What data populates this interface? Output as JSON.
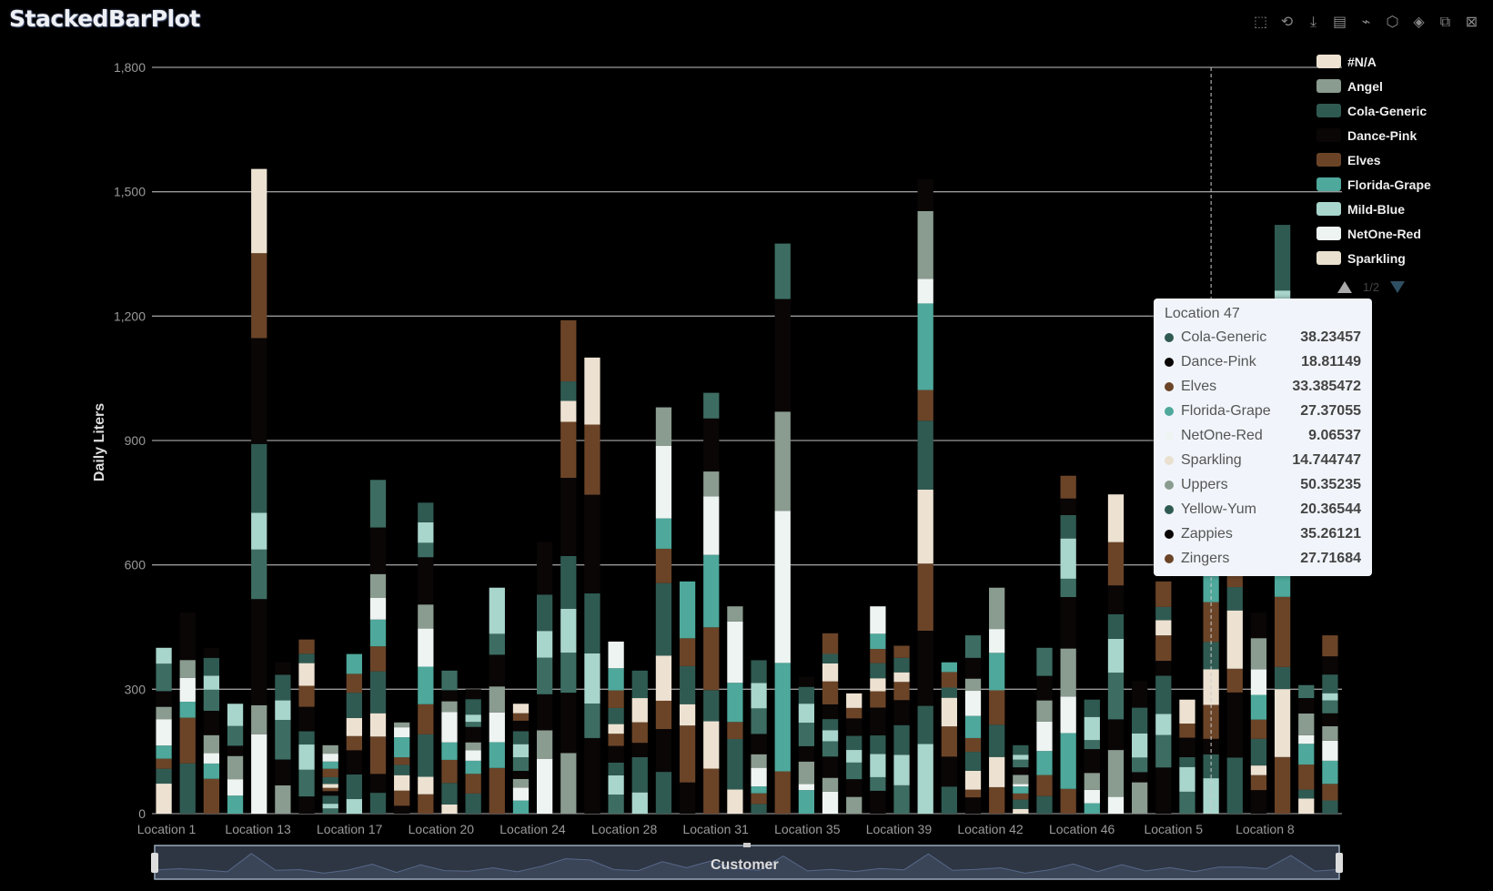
{
  "title": "StackedBarPlot",
  "toolbox": [
    {
      "name": "zoom-select-icon",
      "glyph": "⬚"
    },
    {
      "name": "zoom-reset-icon",
      "glyph": "⟲"
    },
    {
      "name": "download-icon",
      "glyph": "⤓"
    },
    {
      "name": "data-view-icon",
      "glyph": "▤"
    },
    {
      "name": "lasso-icon",
      "glyph": "⌁"
    },
    {
      "name": "polygon-select-icon",
      "glyph": "⬡"
    },
    {
      "name": "rect-select-icon",
      "glyph": "◈"
    },
    {
      "name": "keep-selection-icon",
      "glyph": "⧉"
    },
    {
      "name": "clear-selection-icon",
      "glyph": "⊠"
    }
  ],
  "legend": {
    "items": [
      {
        "label": "#N/A",
        "color": "#ede2d2"
      },
      {
        "label": "Angel",
        "color": "#8a9b8f"
      },
      {
        "label": "Cola-Generic",
        "color": "#2f5a52"
      },
      {
        "label": "Dance-Pink",
        "color": "#0a0606"
      },
      {
        "label": "Elves",
        "color": "#6b4428"
      },
      {
        "label": "Florida-Grape",
        "color": "#4ea89b"
      },
      {
        "label": "Mild-Blue",
        "color": "#a8d5cc"
      },
      {
        "label": "NetOne-Red",
        "color": "#eef4f2"
      },
      {
        "label": "Sparkling",
        "color": "#eae0d0"
      }
    ],
    "page": "1/2"
  },
  "tooltip": {
    "title": "Location 47",
    "rows": [
      {
        "name": "Cola-Generic",
        "value": "38.23457",
        "color": "#2f5a52"
      },
      {
        "name": "Dance-Pink",
        "value": "18.81149",
        "color": "#0a0606"
      },
      {
        "name": "Elves",
        "value": "33.385472",
        "color": "#6b4428"
      },
      {
        "name": "Florida-Grape",
        "value": "27.37055",
        "color": "#4ea89b"
      },
      {
        "name": "NetOne-Red",
        "value": "9.06537",
        "color": "#eef4f2"
      },
      {
        "name": "Sparkling",
        "value": "14.744747",
        "color": "#eae0d0"
      },
      {
        "name": "Uppers",
        "value": "50.35235",
        "color": "#8a9b8f"
      },
      {
        "name": "Yellow-Yum",
        "value": "20.36544",
        "color": "#2f5a52"
      },
      {
        "name": "Zappies",
        "value": "35.26121",
        "color": "#0a0606"
      },
      {
        "name": "Zingers",
        "value": "27.71684",
        "color": "#6b4428"
      }
    ]
  },
  "zoom": {
    "label": "Customer"
  },
  "chart_data": {
    "type": "bar",
    "stacked": true,
    "ylabel": "Daily Liters",
    "xlabel": "",
    "ylim": [
      0,
      1800
    ],
    "yticks": [
      0,
      300,
      600,
      900,
      1200,
      1500,
      1800
    ],
    "xtick_labels": [
      "Location 1",
      "Location 13",
      "Location 17",
      "Location 20",
      "Location 24",
      "Location 28",
      "Location 31",
      "Location 35",
      "Location 39",
      "Location 42",
      "Location 46",
      "Location 5",
      "Location 8"
    ],
    "bar_count": 50,
    "series_colors": [
      "#ede2d2",
      "#2f5a52",
      "#6b4428",
      "#4ea89b",
      "#eef4f2",
      "#8a9b8f",
      "#0a0606",
      "#3d6d62",
      "#a8d5cc",
      "#2f5a52",
      "#0a0606",
      "#6b4428"
    ],
    "totals": [
      400,
      485,
      400,
      265,
      1555,
      365,
      420,
      165,
      385,
      805,
      220,
      750,
      345,
      300,
      545,
      265,
      655,
      1190,
      1100,
      415,
      345,
      980,
      560,
      1015,
      500,
      370,
      1375,
      330,
      435,
      290,
      500,
      405,
      1530,
      365,
      430,
      545,
      165,
      400,
      815,
      275,
      770,
      320,
      560,
      275,
      600,
      600,
      485,
      1420,
      310,
      430
    ],
    "highlight_index": 44,
    "grid": true,
    "legend_position": "right"
  }
}
